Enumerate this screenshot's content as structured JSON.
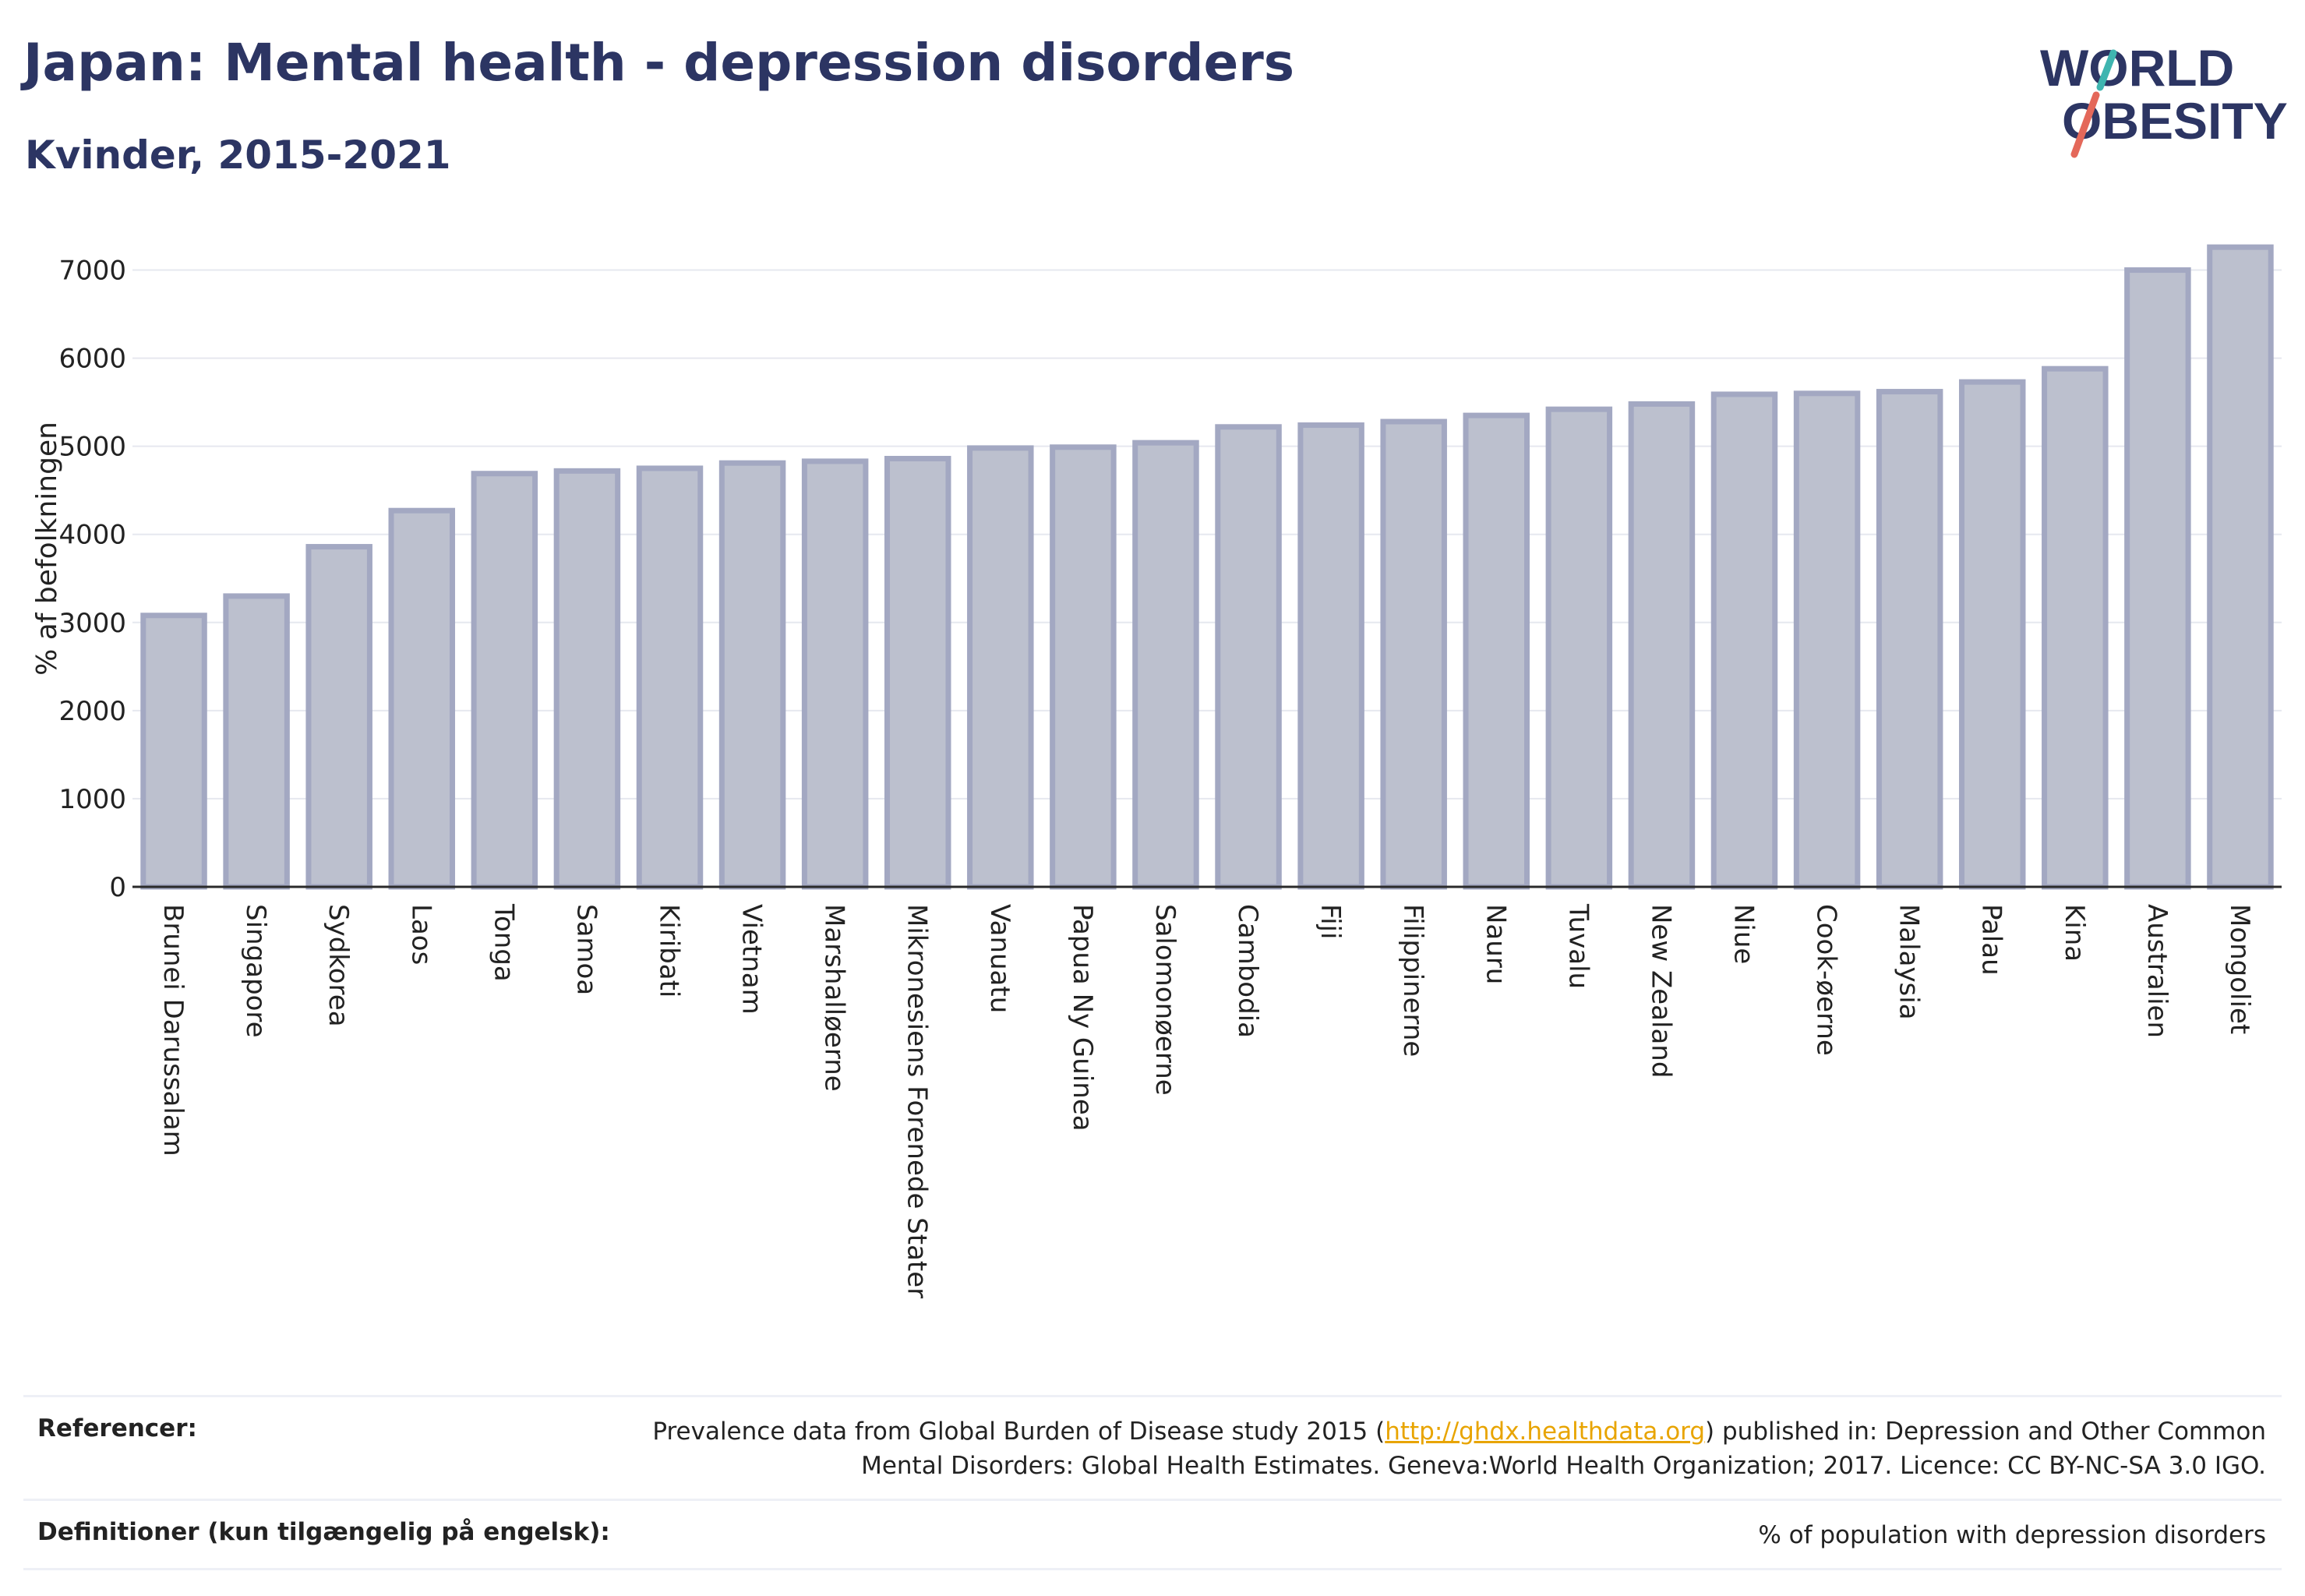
{
  "header": {
    "title": "Japan: Mental health - depression disorders",
    "subtitle": "Kvinder, 2015-2021"
  },
  "logo": {
    "line1": "WORLD",
    "line2": "OBESITY",
    "accent_teal": "#3fb5b0",
    "accent_red": "#e4685a",
    "text_color": "#2c3563"
  },
  "chart_data": {
    "type": "bar",
    "categories": [
      "Brunei Darussalam",
      "Singapore",
      "Sydkorea",
      "Laos",
      "Tonga",
      "Samoa",
      "Kiribati",
      "Vietnam",
      "Marshalløerne",
      "Mikronesiens Forenede Stater",
      "Vanuatu",
      "Papua Ny Guinea",
      "Salomonøerne",
      "Cambodia",
      "Fiji",
      "Filippinerne",
      "Nauru",
      "Tuvalu",
      "New Zealand",
      "Niue",
      "Cook-øerne",
      "Malaysia",
      "Palau",
      "Kina",
      "Australien",
      "Mongoliet"
    ],
    "values": [
      3080,
      3300,
      3860,
      4270,
      4690,
      4720,
      4750,
      4810,
      4830,
      4860,
      4980,
      4990,
      5040,
      5220,
      5240,
      5280,
      5350,
      5420,
      5480,
      5590,
      5600,
      5620,
      5730,
      5880,
      7000,
      7260
    ],
    "ylabel": "% af befolkningen",
    "xlabel": "",
    "ylim": [
      0,
      7500
    ],
    "yticks": [
      0,
      1000,
      2000,
      3000,
      4000,
      5000,
      6000,
      7000
    ],
    "grid": true,
    "bar_fill": "#bcc0ce",
    "bar_stroke": "#a3a8c2"
  },
  "references": {
    "label": "Referencer:",
    "text_before": "Prevalence data from Global Burden of Disease study 2015 (",
    "link": "http://ghdx.healthdata.org",
    "text_after_line1": ") published in: Depression and Other Common",
    "text_line2": "Mental Disorders: Global Health Estimates. Geneva:World Health Organization; 2017. Licence: CC BY-NC-SA 3.0 IGO."
  },
  "definitions": {
    "label": "Definitioner (kun tilgængelig på engelsk):",
    "text": "% of population with depression disorders"
  }
}
